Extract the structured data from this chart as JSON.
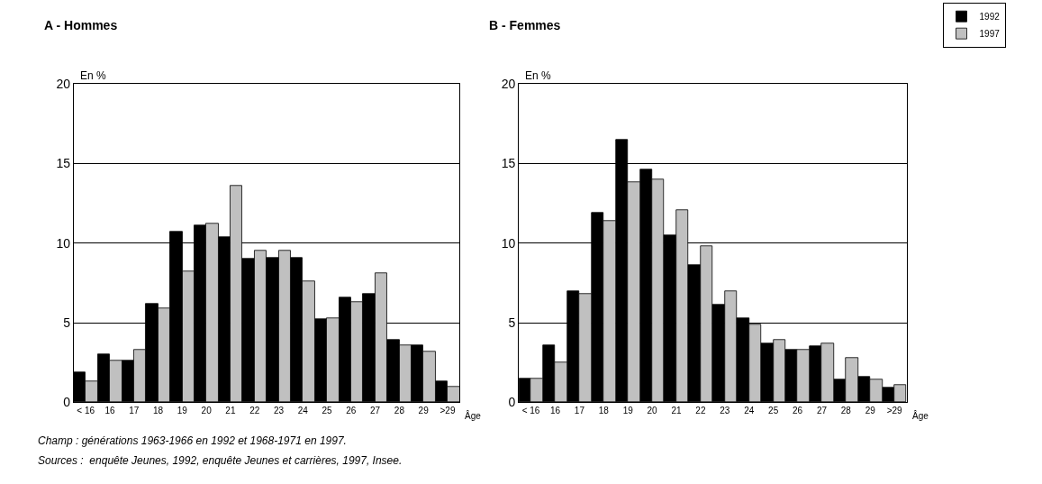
{
  "chart_data": [
    {
      "type": "bar",
      "title": "A - Hommes",
      "ylabel": "En %",
      "xlabel": "Âge",
      "categories": [
        "< 16",
        "16",
        "17",
        "18",
        "19",
        "20",
        "21",
        "22",
        "23",
        "24",
        "25",
        "26",
        "27",
        "28",
        "29",
        ">29"
      ],
      "series": [
        {
          "color": "#000000",
          "values": [
            1.9,
            3.0,
            2.6,
            6.2,
            10.7,
            11.1,
            10.4,
            9.0,
            9.1,
            9.1,
            5.2,
            6.6,
            6.8,
            3.9,
            3.6,
            1.3
          ]
        },
        {
          "color": "#c0c0c0",
          "values": [
            1.3,
            2.6,
            3.3,
            5.9,
            8.2,
            11.2,
            13.6,
            9.5,
            9.5,
            7.6,
            5.3,
            6.3,
            8.1,
            3.6,
            3.2,
            1.0
          ]
        }
      ],
      "ylim": [
        0,
        20
      ],
      "yticks": [
        0,
        5,
        10,
        15,
        20
      ],
      "grid": "y",
      "legend": false,
      "annotations": [
        "Champ : générations 1963-1966 en 1992 et 1968-1971 en 1997.",
        "Sources :  enquête Jeunes, 1992, enquête Jeunes et carrières, 1997, Insee."
      ]
    },
    {
      "type": "bar",
      "title": "B - Femmes",
      "ylabel": "En %",
      "xlabel": "Âge",
      "categories": [
        "< 16",
        "16",
        "17",
        "18",
        "19",
        "20",
        "21",
        "22",
        "23",
        "24",
        "25",
        "26",
        "27",
        "28",
        "29",
        ">29"
      ],
      "series": [
        {
          "name": "1992",
          "color": "#000000",
          "values": [
            1.5,
            3.6,
            7.0,
            11.9,
            16.5,
            14.6,
            10.5,
            8.6,
            6.1,
            5.3,
            3.7,
            3.3,
            3.5,
            1.4,
            1.6,
            0.9
          ]
        },
        {
          "name": "1997",
          "color": "#c0c0c0",
          "values": [
            1.5,
            2.5,
            6.8,
            11.4,
            13.8,
            14.0,
            12.1,
            9.8,
            7.0,
            4.9,
            3.9,
            3.3,
            3.7,
            2.8,
            1.4,
            1.1
          ]
        }
      ],
      "ylim": [
        0,
        20
      ],
      "yticks": [
        0,
        5,
        10,
        15,
        20
      ],
      "grid": "y",
      "legend": "top right"
    }
  ]
}
